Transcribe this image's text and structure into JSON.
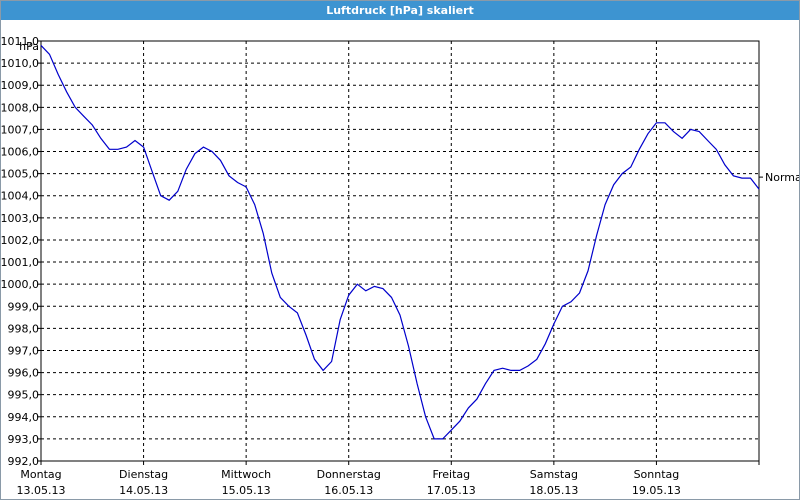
{
  "window": {
    "title": "Luftdruck [hPa] skaliert"
  },
  "chart_data": {
    "type": "line",
    "title": "Luftdruck [hPa] skaliert",
    "ylabel": "hPa",
    "ylim": [
      992.0,
      1011.0
    ],
    "y_ticks": [
      "1011,0",
      "1010,0",
      "1009,0",
      "1008,0",
      "1007,0",
      "1006,0",
      "1005,0",
      "1004,0",
      "1003,0",
      "1002,0",
      "1001,0",
      "1000,0",
      "999,0",
      "998,0",
      "997,0",
      "996,0",
      "995,0",
      "994,0",
      "993,0",
      "992,0"
    ],
    "x_ticks": [
      {
        "day": "Montag",
        "date": "13.05.13"
      },
      {
        "day": "Dienstag",
        "date": "14.05.13"
      },
      {
        "day": "Mittwoch",
        "date": "15.05.13"
      },
      {
        "day": "Donnerstag",
        "date": "16.05.13"
      },
      {
        "day": "Freitag",
        "date": "17.05.13"
      },
      {
        "day": "Samstag",
        "date": "18.05.13"
      },
      {
        "day": "Sonntag",
        "date": "19.05.13"
      }
    ],
    "grid": true,
    "series_color": "#0000cc",
    "annotation": "Normal",
    "series": [
      {
        "x": [
          "13.05.13 00:00",
          "13.05.13 02:00",
          "13.05.13 04:00",
          "13.05.13 06:00",
          "13.05.13 08:00",
          "13.05.13 10:00",
          "13.05.13 12:00",
          "13.05.13 14:00",
          "13.05.13 16:00",
          "13.05.13 18:00",
          "13.05.13 20:00",
          "13.05.13 22:00",
          "14.05.13 00:00",
          "14.05.13 02:00",
          "14.05.13 04:00",
          "14.05.13 06:00",
          "14.05.13 08:00",
          "14.05.13 10:00",
          "14.05.13 12:00",
          "14.05.13 14:00",
          "14.05.13 16:00",
          "14.05.13 18:00",
          "14.05.13 20:00",
          "14.05.13 22:00",
          "15.05.13 00:00",
          "15.05.13 02:00",
          "15.05.13 04:00",
          "15.05.13 06:00",
          "15.05.13 08:00",
          "15.05.13 10:00",
          "15.05.13 12:00",
          "15.05.13 14:00",
          "15.05.13 16:00",
          "15.05.13 18:00",
          "15.05.13 20:00",
          "15.05.13 22:00",
          "16.05.13 00:00",
          "16.05.13 02:00",
          "16.05.13 04:00",
          "16.05.13 06:00",
          "16.05.13 08:00",
          "16.05.13 10:00",
          "16.05.13 12:00",
          "16.05.13 14:00",
          "16.05.13 16:00",
          "16.05.13 18:00",
          "16.05.13 20:00",
          "16.05.13 22:00",
          "17.05.13 00:00",
          "17.05.13 02:00",
          "17.05.13 04:00",
          "17.05.13 06:00",
          "17.05.13 08:00",
          "17.05.13 10:00",
          "17.05.13 12:00",
          "17.05.13 14:00",
          "17.05.13 16:00",
          "17.05.13 18:00",
          "17.05.13 20:00",
          "17.05.13 22:00",
          "18.05.13 00:00",
          "18.05.13 02:00",
          "18.05.13 04:00",
          "18.05.13 06:00",
          "18.05.13 08:00",
          "18.05.13 10:00",
          "18.05.13 12:00",
          "18.05.13 14:00",
          "18.05.13 16:00",
          "18.05.13 18:00",
          "18.05.13 20:00",
          "18.05.13 22:00",
          "19.05.13 00:00",
          "19.05.13 02:00",
          "19.05.13 04:00",
          "19.05.13 06:00",
          "19.05.13 08:00",
          "19.05.13 10:00",
          "19.05.13 12:00",
          "19.05.13 14:00",
          "19.05.13 16:00",
          "19.05.13 18:00",
          "19.05.13 20:00",
          "19.05.13 22:00",
          "20.05.13 00:00"
        ],
        "y": [
          1010.8,
          1010.4,
          1009.5,
          1008.7,
          1008.0,
          1007.6,
          1007.2,
          1006.6,
          1006.1,
          1006.1,
          1006.2,
          1006.5,
          1006.2,
          1005.1,
          1004.0,
          1003.8,
          1004.2,
          1005.2,
          1005.9,
          1006.2,
          1006.0,
          1005.6,
          1004.9,
          1004.6,
          1004.4,
          1003.6,
          1002.3,
          1000.5,
          999.4,
          999.0,
          998.7,
          997.7,
          996.6,
          996.1,
          996.5,
          998.4,
          999.5,
          1000.0,
          999.7,
          999.9,
          999.8,
          999.4,
          998.6,
          997.2,
          995.5,
          994.0,
          993.0,
          993.0,
          993.4,
          993.8,
          994.4,
          994.8,
          995.5,
          996.1,
          996.2,
          996.1,
          996.1,
          996.3,
          996.6,
          997.3,
          998.2,
          999.0,
          999.2,
          999.6,
          1000.6,
          1002.2,
          1003.6,
          1004.5,
          1005.0,
          1005.3,
          1006.1,
          1006.8,
          1007.3,
          1007.3,
          1006.9,
          1006.6,
          1007.0,
          1006.9,
          1006.5,
          1006.1,
          1005.4,
          1004.9,
          1004.8,
          1004.8,
          1004.3
        ]
      }
    ]
  }
}
